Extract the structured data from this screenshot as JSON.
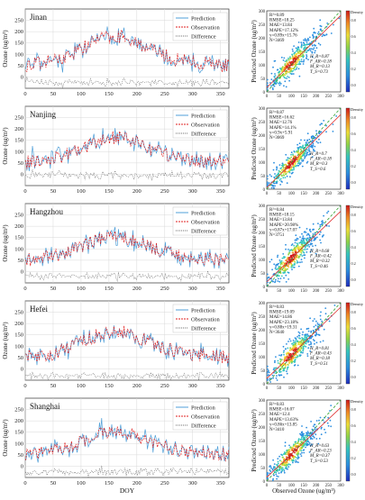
{
  "figure": {
    "xlabel_bottom": "DOY",
    "ylabel_timeseries": "Ozone (ug/m³)",
    "xlabel_scatter_bottom": "Observed Ozone (ug/m³)",
    "ylabel_scatter": "Predicted Ozone (ug/m³)",
    "colorbar_label": "Density",
    "colorbar_ticks": [
      "0.0",
      "0.2",
      "0.4",
      "0.6",
      "0.8"
    ],
    "legend": [
      "Prediction",
      "Observation",
      "Difference"
    ]
  },
  "colors": {
    "prediction": "#4f9fd8",
    "observation": "#e02020",
    "difference": "#6b6b6b",
    "fit_line": "#e03030",
    "one_to_one": "#2ca02c",
    "grid": "#d8d8d8"
  },
  "chart_data": [
    {
      "type": "line",
      "title": "Jinan",
      "xlabel": "",
      "ylabel": "Ozone (ug/m³)",
      "xlim": [
        0,
        365
      ],
      "ylim": [
        -50,
        300
      ],
      "xticks": [
        0,
        50,
        100,
        150,
        200,
        250,
        300,
        350
      ],
      "yticks": [
        0,
        50,
        100,
        150,
        200,
        250
      ],
      "grid": true,
      "legend_position": "top-right",
      "series": [
        {
          "name": "Prediction",
          "style": "solid"
        },
        {
          "name": "Observation",
          "style": "dashed"
        },
        {
          "name": "Difference",
          "style": "dotted"
        }
      ],
      "seasonal": {
        "base": 45,
        "amp": 110,
        "noise": 40,
        "diff_base": -25
      },
      "scatter": {
        "type": "scatter",
        "xlim": [
          0,
          300
        ],
        "ylim": [
          0,
          300
        ],
        "xticks": [
          0,
          50,
          100,
          150,
          200,
          250,
          300
        ],
        "yticks": [
          0,
          50,
          100,
          150,
          200,
          250,
          300
        ],
        "stats": [
          "R²=0.89",
          "RMSE=18.25",
          "MAE=13.84",
          "MAPE=17.12%",
          "y=0.89x+15.76",
          "N=3469"
        ],
        "metrics": [
          "H_R=0.87",
          "F_AR=0.18",
          "M_R=0.13",
          "T_S=0.73"
        ],
        "fit": {
          "slope": 0.89,
          "intercept": 15.76
        },
        "spread": 22
      }
    },
    {
      "type": "line",
      "title": "Nanjing",
      "xlabel": "",
      "ylabel": "Ozone (ug/m³)",
      "xlim": [
        0,
        365
      ],
      "ylim": [
        -50,
        300
      ],
      "xticks": [
        0,
        50,
        100,
        150,
        200,
        250,
        300,
        350
      ],
      "yticks": [
        0,
        50,
        100,
        150,
        200,
        250
      ],
      "grid": true,
      "legend_position": "top-right",
      "series": [
        {
          "name": "Prediction",
          "style": "solid"
        },
        {
          "name": "Observation",
          "style": "dashed"
        },
        {
          "name": "Difference",
          "style": "dotted"
        }
      ],
      "seasonal": {
        "base": 45,
        "amp": 90,
        "noise": 38,
        "diff_base": -5
      },
      "scatter": {
        "type": "scatter",
        "xlim": [
          0,
          300
        ],
        "ylim": [
          0,
          300
        ],
        "xticks": [
          0,
          50,
          100,
          150,
          200,
          250,
          300
        ],
        "yticks": [
          0,
          50,
          100,
          150,
          200,
          250,
          300
        ],
        "stats": [
          "R²=0.87",
          "RMSE=16.62",
          "MAE=12.76",
          "MAPE=14.1%",
          "y=0.9x+5.91",
          "N=3069"
        ],
        "metrics": [
          "H_R=0.7",
          "F_AR=0.18",
          "M_R=0.3",
          "T_S=0.6"
        ],
        "fit": {
          "slope": 0.9,
          "intercept": 5.91
        },
        "spread": 20
      }
    },
    {
      "type": "line",
      "title": "Hangzhou",
      "xlabel": "",
      "ylabel": "Ozone (ug/m³)",
      "xlim": [
        0,
        365
      ],
      "ylim": [
        -50,
        300
      ],
      "xticks": [
        0,
        50,
        100,
        150,
        200,
        250,
        300,
        350
      ],
      "yticks": [
        0,
        50,
        100,
        150,
        200,
        250
      ],
      "grid": true,
      "legend_position": "top-right",
      "series": [
        {
          "name": "Prediction",
          "style": "solid"
        },
        {
          "name": "Observation",
          "style": "dashed"
        },
        {
          "name": "Difference",
          "style": "dotted"
        }
      ],
      "seasonal": {
        "base": 45,
        "amp": 85,
        "noise": 36,
        "diff_base": -20
      },
      "scatter": {
        "type": "scatter",
        "xlim": [
          0,
          300
        ],
        "ylim": [
          0,
          300
        ],
        "xticks": [
          0,
          50,
          100,
          150,
          200,
          250,
          300
        ],
        "yticks": [
          0,
          50,
          100,
          150,
          200,
          250,
          300
        ],
        "stats": [
          "R²=0.84",
          "RMSE=18.15",
          "MAE=13.84",
          "MAPE=20.98%",
          "y=0.87x+17.07",
          "N=3751"
        ],
        "metrics": [
          "H_R=0.68",
          "F_AR=0.42",
          "M_R=0.32",
          "T_S=0.46"
        ],
        "fit": {
          "slope": 0.87,
          "intercept": 17.07
        },
        "spread": 24
      }
    },
    {
      "type": "line",
      "title": "Hefei",
      "xlabel": "",
      "ylabel": "Ozone (ug/m³)",
      "xlim": [
        0,
        365
      ],
      "ylim": [
        -50,
        300
      ],
      "xticks": [
        0,
        50,
        100,
        150,
        200,
        250,
        300,
        350
      ],
      "yticks": [
        0,
        50,
        100,
        150,
        200,
        250
      ],
      "grid": true,
      "legend_position": "top-right",
      "series": [
        {
          "name": "Prediction",
          "style": "solid"
        },
        {
          "name": "Observation",
          "style": "dashed"
        },
        {
          "name": "Difference",
          "style": "dotted"
        }
      ],
      "seasonal": {
        "base": 45,
        "amp": 95,
        "noise": 38,
        "diff_base": -30
      },
      "scatter": {
        "type": "scatter",
        "xlim": [
          0,
          300
        ],
        "ylim": [
          0,
          300
        ],
        "xticks": [
          0,
          50,
          100,
          150,
          200,
          250,
          300
        ],
        "yticks": [
          0,
          50,
          100,
          150,
          200,
          250,
          300
        ],
        "stats": [
          "R²=0.83",
          "RMSE=19.09",
          "MAE=14.86",
          "MAPE=23.18%",
          "y=0.88x+19.31",
          "N=3640"
        ],
        "metrics": [
          "H_R=0.81",
          "F_AR=0.43",
          "M_R=0.18",
          "T_S=0.51"
        ],
        "fit": {
          "slope": 0.88,
          "intercept": 19.31
        },
        "spread": 25
      }
    },
    {
      "type": "line",
      "title": "Shanghai",
      "xlabel": "DOY",
      "ylabel": "Ozone (ug/m³)",
      "xlim": [
        0,
        365
      ],
      "ylim": [
        -50,
        300
      ],
      "xticks": [
        0,
        50,
        100,
        150,
        200,
        250,
        300,
        350
      ],
      "yticks": [
        0,
        50,
        100,
        150,
        200,
        250
      ],
      "grid": true,
      "legend_position": "top-right",
      "series": [
        {
          "name": "Prediction",
          "style": "solid"
        },
        {
          "name": "Observation",
          "style": "dashed"
        },
        {
          "name": "Difference",
          "style": "dotted"
        }
      ],
      "seasonal": {
        "base": 45,
        "amp": 80,
        "noise": 36,
        "diff_base": -25
      },
      "scatter": {
        "type": "scatter",
        "xlim": [
          0,
          300
        ],
        "ylim": [
          0,
          300
        ],
        "xticks": [
          0,
          50,
          100,
          150,
          200,
          250,
          300
        ],
        "yticks": [
          0,
          50,
          100,
          150,
          200,
          250,
          300
        ],
        "stats": [
          "R²=0.83",
          "RMSE=16.07",
          "MAE=12.4",
          "MAPE=13.63%",
          "y=0.86x+13.85",
          "N=3410"
        ],
        "metrics": [
          "H_R=0.63",
          "F_AR=0.23",
          "M_R=0.37",
          "T_S=0.53"
        ],
        "fit": {
          "slope": 0.86,
          "intercept": 13.85
        },
        "spread": 22
      }
    }
  ]
}
